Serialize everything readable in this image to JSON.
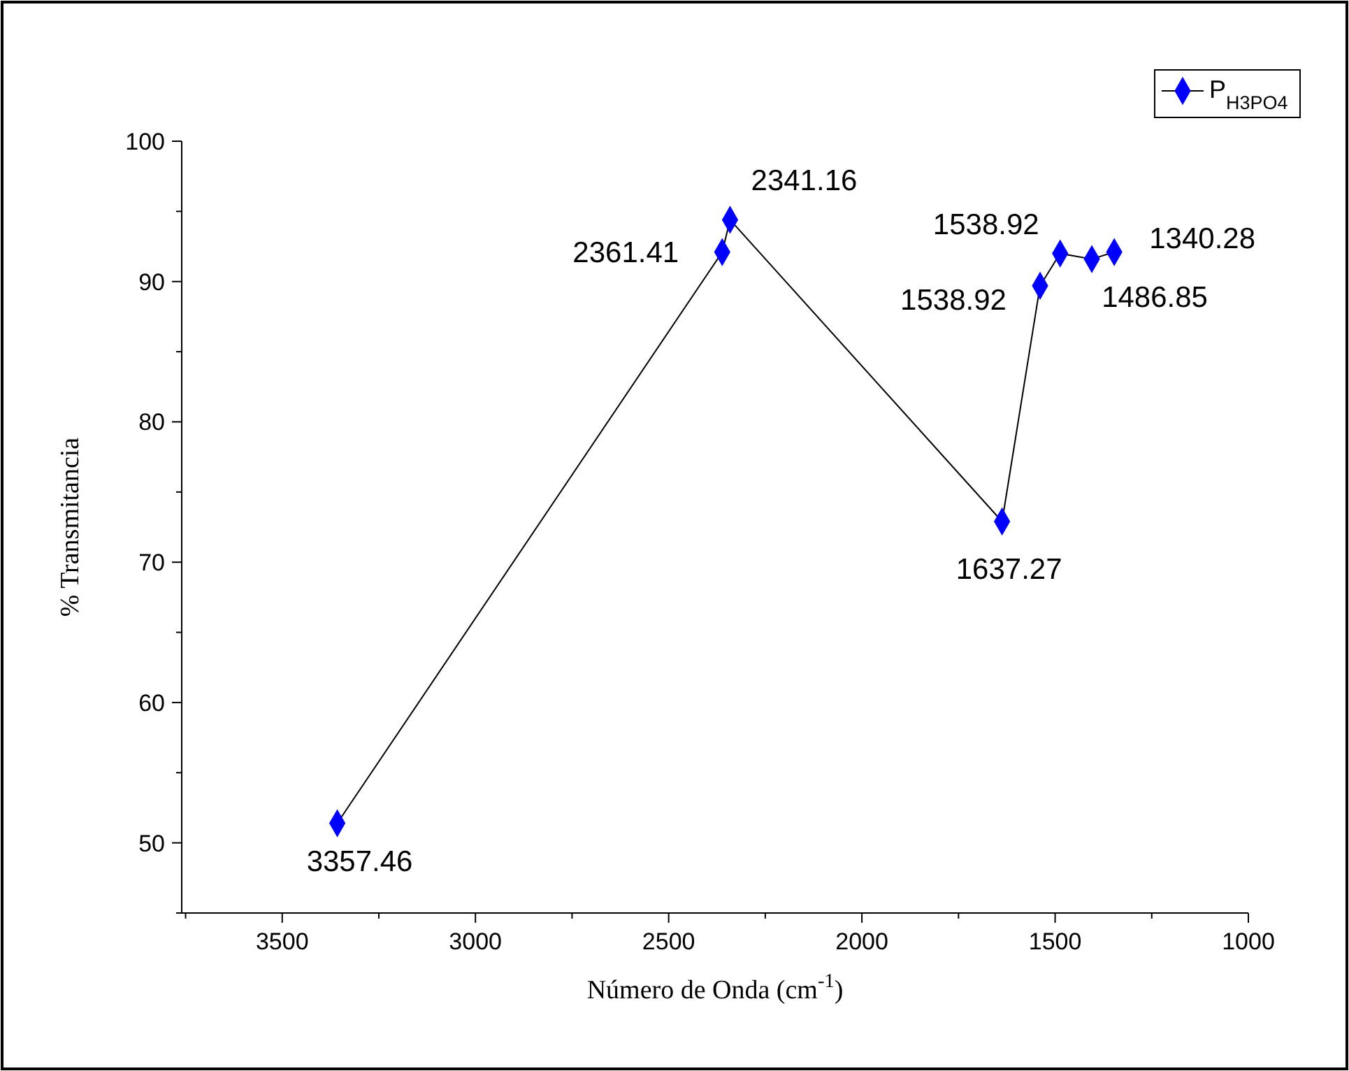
{
  "chart_data": {
    "type": "line",
    "xlabel": "Número de Onda (cm$^{-1}$)",
    "ylabel": "% Transmitancia",
    "xlim": [
      3760,
      1000
    ],
    "ylim": [
      45,
      100
    ],
    "xticks": [
      {
        "value": 3750,
        "label": null
      },
      3500,
      {
        "value": 3250,
        "label": null
      },
      3000,
      {
        "value": 2750,
        "label": null
      },
      2500,
      {
        "value": 2250,
        "label": null
      },
      2000,
      {
        "value": 1750,
        "label": null
      },
      1500,
      {
        "value": 1250,
        "label": null
      },
      1000
    ],
    "yticks": [
      {
        "value": 45,
        "label": null
      },
      50,
      {
        "value": 55,
        "label": null
      },
      60,
      {
        "value": 65,
        "label": null
      },
      70,
      {
        "value": 75,
        "label": null
      },
      80,
      {
        "value": 85,
        "label": null
      },
      90,
      {
        "value": 95,
        "label": null
      },
      100
    ],
    "series": [
      {
        "name": "P$_{H3PO4}$",
        "color": "#0000ff",
        "x": [
          3357.46,
          2361.41,
          2341.16,
          1637.27,
          1538.92,
          1487,
          1405,
          1347
        ],
        "values": [
          51.4,
          92.1,
          94.4,
          72.9,
          89.7,
          92.0,
          91.6,
          92.1
        ]
      }
    ],
    "marker": "diamond",
    "line_style": "solid",
    "legend": "top right",
    "grid": false,
    "annotations": [
      {
        "text": "3357.46",
        "x": 3357.46,
        "y": 51.4
      },
      {
        "text": "2361.41",
        "x": 2361.41,
        "y": 92.1
      },
      {
        "text": "2341.16",
        "x": 2341.16,
        "y": 94.4
      },
      {
        "text": "1637.27",
        "x": 1637.27,
        "y": 72.9
      },
      {
        "text": "1538.92",
        "x": 1538.92,
        "y": 89.7
      },
      {
        "text": "1538.92",
        "x": 1487,
        "y": 92.0
      },
      {
        "text": "1486.85",
        "x": 1405,
        "y": 91.6
      },
      {
        "text": "1340.28",
        "x": 1347,
        "y": 92.1
      }
    ]
  }
}
